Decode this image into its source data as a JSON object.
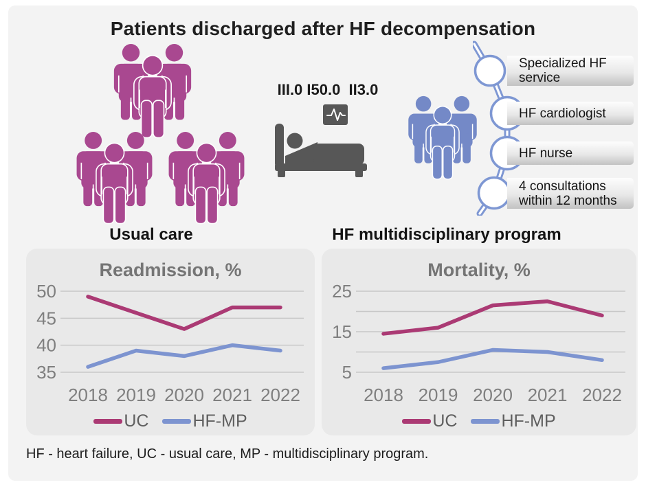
{
  "title": "Patients discharged after HF decompensation",
  "icd_codes": "III.0 I50.0  II3.0",
  "sections": {
    "usual_care_label": "Usual care",
    "hf_program_label": "HF multidisciplinary program"
  },
  "chain": {
    "items": [
      "Specialized HF service",
      "HF cardiologist",
      "HF nurse",
      "4 consultations within 12 months"
    ]
  },
  "footer": "HF - heart failure, UC - usual care, MP - multidisciplinary program.",
  "icons": {
    "usual_care_patients": "people-group-icon",
    "program_patients": "people-group-icon",
    "hospital_bed": "hospital-bed-patient-icon",
    "ecg_monitor": "ecg-monitor-icon",
    "care_pathway": "care-pathway-chain-icon"
  },
  "colors": {
    "people_magenta": "#a94890",
    "people_blue": "#7489c7",
    "icon_gray": "#575757",
    "chain_blue": "#7e97d3",
    "uc_line": "#ab3a74",
    "hfmp_line": "#7d94d0",
    "card_bg": "#f3f3f3",
    "chart_bg": "#e9e9e9",
    "gridline": "#c8c8c8",
    "tick_text": "#7f7f7f",
    "chart_title_text": "#757575"
  },
  "chart_data": [
    {
      "type": "line",
      "title": "Readmission, %",
      "x": [
        2018,
        2019,
        2020,
        2021,
        2022
      ],
      "series": [
        {
          "name": "UC",
          "color": "#ab3a74",
          "values": [
            49,
            46,
            43,
            47,
            47
          ]
        },
        {
          "name": "HF-MP",
          "color": "#7d94d0",
          "values": [
            36,
            39,
            38,
            40,
            39
          ]
        }
      ],
      "y_gridlines": [
        50,
        45,
        40,
        35
      ],
      "y_labeled": [
        50,
        45,
        40,
        35
      ],
      "ylim": [
        35,
        50
      ],
      "grid": true,
      "legend_position": "bottom"
    },
    {
      "type": "line",
      "title": "Mortality, %",
      "x": [
        2018,
        2019,
        2020,
        2021,
        2022
      ],
      "series": [
        {
          "name": "UC",
          "color": "#ab3a74",
          "values": [
            14.5,
            16,
            21.5,
            22.5,
            19
          ]
        },
        {
          "name": "HF-MP",
          "color": "#7d94d0",
          "values": [
            6,
            7.5,
            10.5,
            10,
            8
          ]
        }
      ],
      "y_gridlines": [
        25,
        20,
        15,
        10,
        5
      ],
      "y_labeled": [
        25,
        15,
        5
      ],
      "ylim": [
        5,
        25
      ],
      "grid": true,
      "legend_position": "bottom"
    }
  ]
}
